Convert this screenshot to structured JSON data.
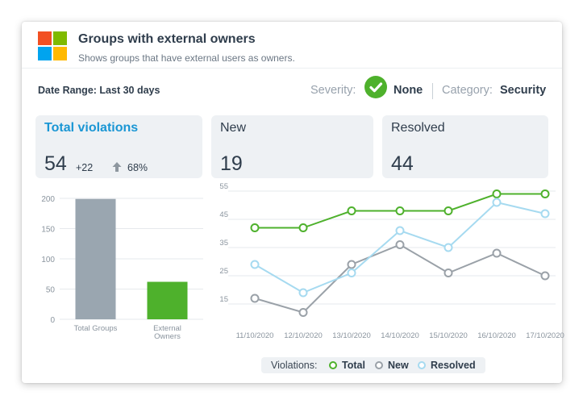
{
  "header": {
    "title": "Groups with external owners",
    "subtitle": "Shows groups that have external users as owners.",
    "logo_icon": "microsoft-logo"
  },
  "filters": {
    "date_range": "Date Range: Last 30 days",
    "severity_label": "Severity:",
    "severity_icon": "check-circle-icon",
    "severity_value": "None",
    "category_label": "Category:",
    "category_value": "Security"
  },
  "stats": {
    "total": {
      "label": "Total violations",
      "value": "54",
      "delta": "+22",
      "delta_icon": "arrow-up-icon",
      "percent": "68%"
    },
    "new": {
      "label": "New",
      "value": "19"
    },
    "resolved": {
      "label": "Resolved",
      "value": "44"
    }
  },
  "legend": {
    "title": "Violations:",
    "items": [
      {
        "label": "Total",
        "color": "#4eb12c"
      },
      {
        "label": "New",
        "color": "#9aa1a8"
      },
      {
        "label": "Resolved",
        "color": "#a6daf0"
      }
    ]
  },
  "chart_data": [
    {
      "type": "bar",
      "categories": [
        "Total Groups",
        "External\nOwners"
      ],
      "values": [
        199,
        62
      ],
      "colors": [
        "#9aa6b0",
        "#4eb12c"
      ],
      "ylim": [
        0,
        200
      ],
      "yticks": [
        0,
        50,
        100,
        150,
        200
      ],
      "grid": true
    },
    {
      "type": "line",
      "x": [
        "11/10/2020",
        "12/10/2020",
        "13/10/2020",
        "14/10/2020",
        "15/10/2020",
        "16/10/2020",
        "17/10/2020"
      ],
      "x_display": [
        "11/10/2020",
        "12/10/2020",
        "13/10/2020",
        "14/10/2020",
        "15/10/2020",
        "16/10/2020",
        "17/10/2020"
      ],
      "ylim": [
        15,
        55
      ],
      "yticks": [
        15,
        25,
        35,
        45,
        55
      ],
      "grid": true,
      "series": [
        {
          "name": "Total",
          "color": "#4eb12c",
          "values": [
            42,
            42,
            48,
            48,
            48,
            54,
            54
          ]
        },
        {
          "name": "New",
          "color": "#9aa1a8",
          "values": [
            17,
            12,
            29,
            36,
            26,
            33,
            25
          ]
        },
        {
          "name": "Resolved",
          "color": "#a6daf0",
          "values": [
            29,
            19,
            26,
            41,
            35,
            51,
            47
          ]
        }
      ]
    }
  ]
}
